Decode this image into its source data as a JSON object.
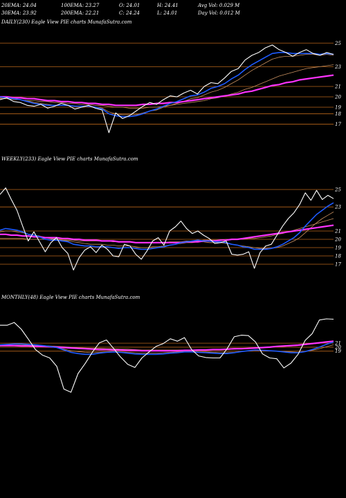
{
  "header": {
    "ema20": "20EMA: 24.04",
    "ema30": "30EMA: 23.92",
    "ema100": "100EMA: 23.27",
    "ema200": "200EMA: 22.21",
    "open": "O: 24.01",
    "close": "C: 24.24",
    "high": "H: 24.41",
    "low": "L: 24.01",
    "avg_vol": "Avg Vol: 0.029 M",
    "day_vol": "Day Vol: 0.012 M"
  },
  "colors": {
    "background": "#000000",
    "price": "#ffffff",
    "ema_fast": "#1e5bff",
    "ema_pink": "#ff33ff",
    "ema_thin": "#c89060",
    "gridline": "#b8651a"
  },
  "chart_data": [
    {
      "type": "line",
      "title": "DAILY(230) Eagle  View  PIE charts MunafaSutra.com",
      "ylim": [
        15.5,
        26.5
      ],
      "y_ticks": [
        "25",
        "23",
        "21",
        "20",
        "19",
        "18",
        "17"
      ],
      "grid_levels": [
        25.6,
        23.1,
        21,
        19.9,
        18.8,
        18.1,
        17
      ],
      "x_count": 50,
      "series": [
        {
          "role": "price",
          "values": [
            19.6,
            19.8,
            19.4,
            19.3,
            19.0,
            18.9,
            19.1,
            18.7,
            18.9,
            19.2,
            19.0,
            18.6,
            18.8,
            19.0,
            18.7,
            18.5,
            16.1,
            18.2,
            17.6,
            17.9,
            18.4,
            18.9,
            19.3,
            19.1,
            19.6,
            20.0,
            19.9,
            20.3,
            20.6,
            20.2,
            21.0,
            21.4,
            21.3,
            21.9,
            22.6,
            22.9,
            23.8,
            24.3,
            24.6,
            25.1,
            25.4,
            24.9,
            24.6,
            24.2,
            24.6,
            24.9,
            24.5,
            24.3,
            24.6,
            24.4
          ]
        },
        {
          "role": "ema20",
          "values": [
            19.9,
            19.8,
            19.7,
            19.6,
            19.4,
            19.2,
            19.1,
            19.0,
            19.0,
            19.0,
            19.0,
            18.9,
            18.9,
            18.9,
            18.8,
            18.6,
            18.1,
            17.9,
            17.8,
            17.8,
            17.9,
            18.1,
            18.4,
            18.6,
            18.9,
            19.2,
            19.4,
            19.7,
            20.0,
            20.1,
            20.4,
            20.8,
            21.0,
            21.3,
            21.8,
            22.2,
            22.8,
            23.3,
            23.7,
            24.1,
            24.5,
            24.6,
            24.6,
            24.5,
            24.5,
            24.5,
            24.5,
            24.4,
            24.5,
            24.4
          ]
        },
        {
          "role": "ema30",
          "values": [
            19.8,
            19.8,
            19.7,
            19.6,
            19.5,
            19.3,
            19.2,
            19.1,
            19.0,
            19.0,
            19.0,
            18.9,
            18.9,
            18.9,
            18.8,
            18.7,
            18.3,
            18.1,
            18.0,
            18.0,
            18.0,
            18.2,
            18.4,
            18.5,
            18.8,
            19.0,
            19.2,
            19.4,
            19.7,
            19.8,
            20.1,
            20.4,
            20.6,
            20.9,
            21.3,
            21.7,
            22.2,
            22.7,
            23.1,
            23.5,
            23.9,
            24.1,
            24.2,
            24.2,
            24.3,
            24.4,
            24.4,
            24.3,
            24.4,
            24.3
          ]
        },
        {
          "role": "ema100",
          "values": [
            19.7,
            19.7,
            19.6,
            19.6,
            19.5,
            19.5,
            19.4,
            19.4,
            19.3,
            19.3,
            19.2,
            19.2,
            19.1,
            19.1,
            19.0,
            19.0,
            18.9,
            18.8,
            18.8,
            18.7,
            18.7,
            18.7,
            18.8,
            18.8,
            18.9,
            19.0,
            19.1,
            19.2,
            19.3,
            19.4,
            19.5,
            19.7,
            19.8,
            20.0,
            20.2,
            20.4,
            20.7,
            20.9,
            21.2,
            21.5,
            21.8,
            22.1,
            22.3,
            22.5,
            22.7,
            22.9,
            23.0,
            23.1,
            23.2,
            23.3
          ]
        },
        {
          "role": "ema200",
          "values": [
            19.9,
            19.9,
            19.8,
            19.8,
            19.7,
            19.7,
            19.6,
            19.5,
            19.5,
            19.4,
            19.4,
            19.3,
            19.3,
            19.2,
            19.2,
            19.1,
            19.1,
            19.0,
            19.0,
            19.0,
            19.0,
            19.1,
            19.1,
            19.2,
            19.2,
            19.3,
            19.3,
            19.4,
            19.5,
            19.6,
            19.7,
            19.8,
            19.9,
            20.0,
            20.1,
            20.2,
            20.4,
            20.5,
            20.7,
            20.9,
            21.1,
            21.2,
            21.4,
            21.5,
            21.7,
            21.8,
            21.9,
            22.0,
            22.1,
            22.2
          ]
        }
      ]
    },
    {
      "type": "line",
      "title": "WEEKLY(233) Eagle  View  PIE charts MunafaSutra.com",
      "ylim": [
        15.5,
        28.0
      ],
      "y_ticks": [
        "25",
        "23",
        "21",
        "20",
        "19",
        "18",
        "17"
      ],
      "grid_levels": [
        26.0,
        23.9,
        21,
        20,
        19,
        18,
        17
      ],
      "x_count": 60,
      "series": [
        {
          "role": "price",
          "values": [
            25.4,
            26.2,
            24.8,
            23.5,
            21.6,
            19.8,
            20.9,
            19.7,
            18.5,
            19.6,
            20.2,
            19.0,
            18.3,
            16.3,
            17.8,
            18.7,
            19.1,
            18.4,
            19.3,
            18.8,
            18.0,
            17.9,
            19.4,
            19.2,
            18.2,
            17.6,
            18.6,
            19.8,
            20.2,
            19.3,
            21.0,
            21.5,
            22.2,
            21.3,
            20.7,
            21.0,
            20.5,
            20.1,
            19.5,
            19.6,
            19.8,
            18.2,
            18.1,
            18.2,
            18.5,
            16.5,
            18.4,
            19.2,
            19.4,
            20.5,
            21.6,
            22.5,
            23.2,
            24.2,
            25.6,
            24.7,
            25.9,
            24.8,
            25.3,
            24.9
          ]
        },
        {
          "role": "ema20",
          "values": [
            21.1,
            21.3,
            21.2,
            21.1,
            20.9,
            20.6,
            20.5,
            20.3,
            20.0,
            19.9,
            19.9,
            19.8,
            19.7,
            19.4,
            19.3,
            19.2,
            19.2,
            19.1,
            19.1,
            19.1,
            19.0,
            18.9,
            19.0,
            19.0,
            18.9,
            18.8,
            18.8,
            18.9,
            19.0,
            19.1,
            19.3,
            19.4,
            19.6,
            19.7,
            19.8,
            19.9,
            19.8,
            19.8,
            19.7,
            19.7,
            19.6,
            19.4,
            19.3,
            19.1,
            19.0,
            18.8,
            18.8,
            18.8,
            18.9,
            19.1,
            19.4,
            19.8,
            20.2,
            20.8,
            21.6,
            22.3,
            23.0,
            23.5,
            24.0,
            24.4
          ]
        },
        {
          "role": "ema30",
          "values": [
            20.9,
            21.0,
            21.0,
            20.9,
            20.8,
            20.6,
            20.5,
            20.4,
            20.2,
            20.1,
            20.0,
            19.9,
            19.8,
            19.7,
            19.6,
            19.5,
            19.4,
            19.4,
            19.4,
            19.3,
            19.3,
            19.2,
            19.2,
            19.2,
            19.1,
            19.0,
            19.0,
            19.1,
            19.1,
            19.2,
            19.3,
            19.4,
            19.5,
            19.6,
            19.6,
            19.7,
            19.7,
            19.6,
            19.6,
            19.6,
            19.5,
            19.4,
            19.3,
            19.2,
            19.1,
            19.0,
            18.9,
            18.9,
            18.9,
            19.0,
            19.2,
            19.5,
            19.8,
            20.2,
            20.8,
            21.4,
            22.0,
            22.5,
            22.9,
            23.3
          ]
        },
        {
          "role": "ema100",
          "values": [
            20.1,
            20.1,
            20.1,
            20.1,
            20.1,
            20.0,
            20.0,
            20.0,
            20.0,
            20.0,
            20.0,
            19.9,
            19.9,
            19.9,
            19.8,
            19.8,
            19.8,
            19.8,
            19.8,
            19.8,
            19.7,
            19.7,
            19.7,
            19.7,
            19.6,
            19.6,
            19.6,
            19.6,
            19.6,
            19.6,
            19.7,
            19.7,
            19.7,
            19.8,
            19.8,
            19.8,
            19.9,
            19.9,
            19.9,
            19.9,
            20.0,
            20.0,
            20.0,
            20.0,
            20.1,
            20.1,
            20.2,
            20.3,
            20.4,
            20.6,
            20.7,
            20.9,
            21.1,
            21.3,
            21.5,
            21.7,
            21.9,
            22.1,
            22.3,
            22.5
          ]
        },
        {
          "role": "ema200",
          "values": [
            20.6,
            20.6,
            20.5,
            20.5,
            20.4,
            20.4,
            20.3,
            20.3,
            20.2,
            20.2,
            20.2,
            20.1,
            20.1,
            20.0,
            20.0,
            19.9,
            19.9,
            19.9,
            19.8,
            19.8,
            19.8,
            19.7,
            19.7,
            19.7,
            19.6,
            19.6,
            19.6,
            19.6,
            19.6,
            19.6,
            19.6,
            19.6,
            19.6,
            19.7,
            19.7,
            19.7,
            19.8,
            19.8,
            19.8,
            19.9,
            19.9,
            20.0,
            20.0,
            20.1,
            20.2,
            20.3,
            20.4,
            20.5,
            20.6,
            20.7,
            20.8,
            20.9,
            21.0,
            21.1,
            21.2,
            21.3,
            21.4,
            21.5,
            21.6,
            21.7
          ]
        }
      ]
    },
    {
      "type": "line",
      "title": "MONTHLY(48) Eagle  View  PIE charts MunafaSutra.com",
      "ylim": [
        3.0,
        29.0
      ],
      "y_ticks": [
        "21",
        "20",
        "19"
      ],
      "grid_levels": [
        21,
        20,
        19
      ],
      "x_count": 48,
      "series": [
        {
          "role": "price",
          "values": [
            25.5,
            25.5,
            26.2,
            24.5,
            22.0,
            19.4,
            18.0,
            17.3,
            15.2,
            9.5,
            8.7,
            13.4,
            15.9,
            18.7,
            21.1,
            21.8,
            19.7,
            17.5,
            15.7,
            14.9,
            17.3,
            18.8,
            20.2,
            20.9,
            22.1,
            21.5,
            22.4,
            19.4,
            17.8,
            17.4,
            17.3,
            17.3,
            19.6,
            22.6,
            23.0,
            22.9,
            21.3,
            18.3,
            17.3,
            17.1,
            14.8,
            16.0,
            18.2,
            21.7,
            23.4,
            26.8,
            27.1,
            27.0
          ]
        },
        {
          "role": "ema20",
          "values": [
            20.6,
            20.7,
            20.8,
            20.8,
            20.7,
            20.6,
            20.4,
            20.2,
            19.9,
            19.3,
            18.7,
            18.4,
            18.2,
            18.2,
            18.5,
            18.7,
            18.8,
            18.7,
            18.5,
            18.3,
            18.2,
            18.2,
            18.2,
            18.3,
            18.5,
            18.6,
            18.8,
            18.8,
            18.7,
            18.6,
            18.5,
            18.4,
            18.4,
            18.6,
            18.9,
            19.1,
            19.3,
            19.2,
            19.1,
            19.0,
            18.8,
            18.6,
            18.6,
            18.9,
            19.4,
            20.0,
            20.7,
            21.3
          ]
        },
        {
          "role": "ema30",
          "values": [
            20.3,
            20.4,
            20.5,
            20.5,
            20.5,
            20.4,
            20.3,
            20.2,
            19.9,
            19.5,
            19.1,
            18.9,
            18.7,
            18.6,
            18.7,
            18.8,
            18.9,
            18.8,
            18.7,
            18.6,
            18.5,
            18.5,
            18.5,
            18.6,
            18.7,
            18.8,
            18.9,
            18.9,
            18.8,
            18.8,
            18.7,
            18.6,
            18.6,
            18.7,
            18.9,
            19.1,
            19.2,
            19.2,
            19.1,
            19.0,
            18.9,
            18.8,
            18.7,
            18.9,
            19.2,
            19.6,
            20.1,
            20.6
          ]
        },
        {
          "role": "ema100",
          "values": [
            20.5,
            20.5,
            20.5,
            20.5,
            20.5,
            20.4,
            20.4,
            20.3,
            20.2,
            20.1,
            20.0,
            19.9,
            19.8,
            19.7,
            19.7,
            19.6,
            19.6,
            19.5,
            19.5,
            19.4,
            19.3,
            19.3,
            19.3,
            19.3,
            19.3,
            19.3,
            19.3,
            19.3,
            19.3,
            19.3,
            19.3,
            19.3,
            19.4,
            19.5,
            19.6,
            19.7,
            19.8,
            19.9,
            20.0,
            20.1,
            20.2,
            20.3,
            20.4,
            20.6,
            20.8,
            21.0,
            21.3,
            21.5
          ]
        },
        {
          "role": "ema200",
          "values": [
            20.4,
            20.4,
            20.4,
            20.3,
            20.3,
            20.2,
            20.2,
            20.1,
            20.0,
            19.9,
            19.8,
            19.7,
            19.6,
            19.5,
            19.4,
            19.4,
            19.3,
            19.3,
            19.2,
            19.2,
            19.1,
            19.1,
            19.1,
            19.1,
            19.1,
            19.1,
            19.2,
            19.2,
            19.3,
            19.3,
            19.4,
            19.4,
            19.5,
            19.6,
            19.6,
            19.7,
            19.8,
            19.9,
            20.0,
            20.2,
            20.3,
            20.4,
            20.5,
            20.7,
            20.9,
            21.1,
            21.3,
            21.5
          ]
        }
      ]
    }
  ]
}
